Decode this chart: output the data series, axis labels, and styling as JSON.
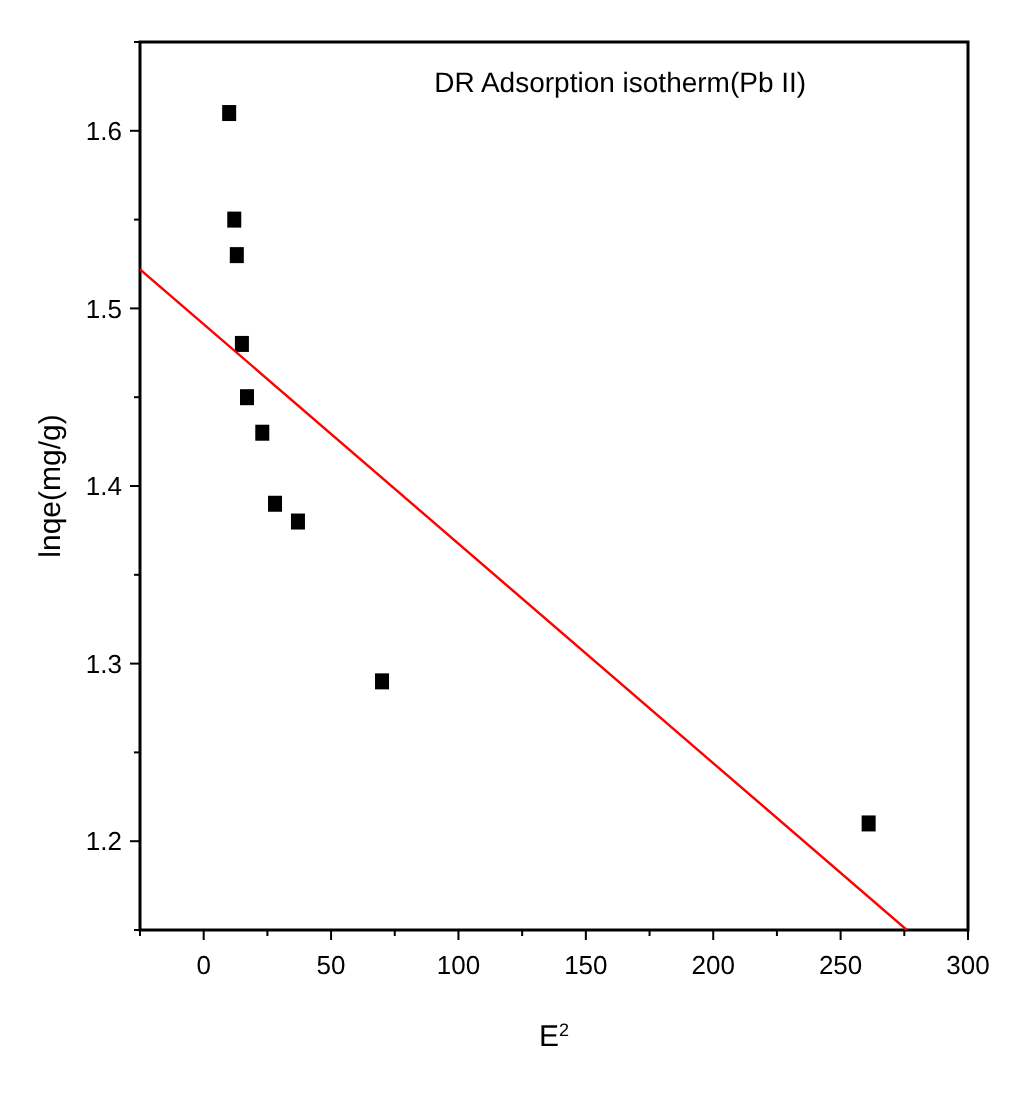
{
  "chart_data": {
    "type": "scatter",
    "title": "DR Adsorption isotherm(Pb II)",
    "xlabel": "E$^{2}$",
    "ylabel": "lnqe(mg/g)",
    "xlim": [
      -25,
      300
    ],
    "ylim": [
      1.15,
      1.65
    ],
    "xticks": [
      {
        "value": -25,
        "label": null
      },
      0,
      {
        "value": 25,
        "label": null
      },
      50,
      {
        "value": 75,
        "label": null
      },
      100,
      {
        "value": 125,
        "label": null
      },
      150,
      {
        "value": 175,
        "label": null
      },
      200,
      {
        "value": 225,
        "label": null
      },
      250,
      {
        "value": 275,
        "label": null
      },
      300
    ],
    "yticks": [
      {
        "value": 1.15,
        "label": null
      },
      1.2,
      {
        "value": 1.25,
        "label": null
      },
      1.3,
      {
        "value": 1.35,
        "label": null
      },
      1.4,
      {
        "value": 1.45,
        "label": null
      },
      1.5,
      {
        "value": 1.55,
        "label": null
      },
      1.6,
      {
        "value": 1.65,
        "label": null
      }
    ],
    "grid": false,
    "series": [
      {
        "color": "#000000",
        "marker": "square",
        "x": [
          10,
          12,
          13,
          15,
          17,
          23,
          28,
          37,
          70,
          261
        ],
        "values": [
          1.61,
          1.55,
          1.53,
          1.48,
          1.45,
          1.43,
          1.39,
          1.38,
          1.29,
          1.21
        ]
      },
      {
        "type": "line",
        "color": "#ff0000",
        "marker": "none",
        "x": [
          -25,
          276
        ],
        "values": [
          1.522,
          1.15
        ]
      }
    ]
  }
}
